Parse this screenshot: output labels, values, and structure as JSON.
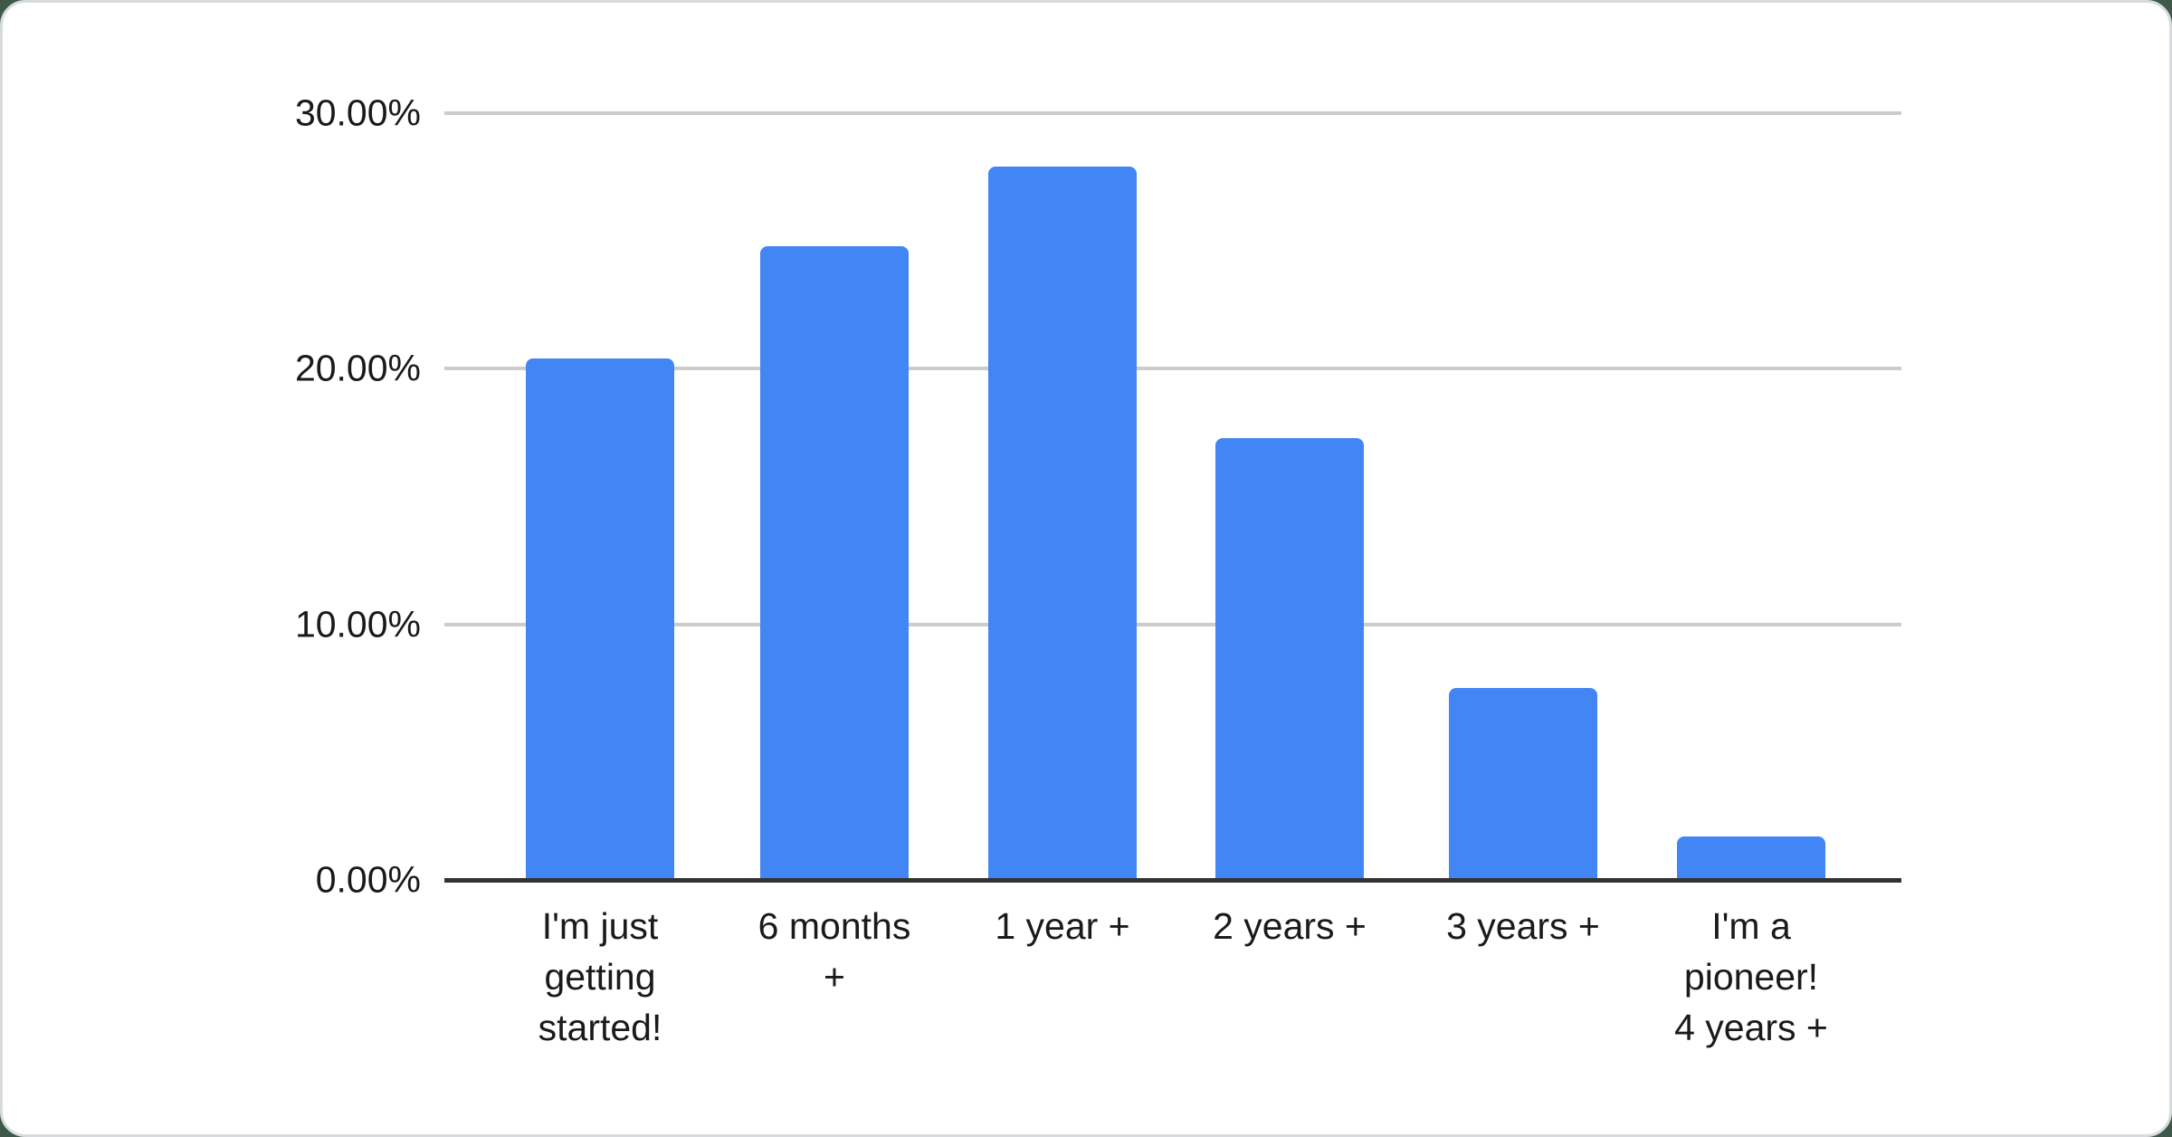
{
  "page": {
    "background_color": "#3e5849",
    "card_background_color": "#ffffff",
    "card_border_color": "#d7dbde"
  },
  "chart_data": {
    "type": "bar",
    "title": "",
    "xlabel": "",
    "ylabel": "",
    "categories": [
      "I'm just getting started!",
      "6 months +",
      "1 year +",
      "2 years +",
      "3 years +",
      "I'm a pioneer! 4 years +"
    ],
    "category_label_lines": [
      [
        "I'm just",
        "getting",
        "started!"
      ],
      [
        "6 months",
        "+"
      ],
      [
        "1 year +"
      ],
      [
        "2 years +"
      ],
      [
        "3 years +"
      ],
      [
        "I'm a",
        "pioneer!",
        "4 years +"
      ]
    ],
    "values": [
      20.4,
      24.8,
      27.9,
      17.3,
      7.5,
      1.7
    ],
    "value_unit": "%",
    "ylim": [
      0,
      30
    ],
    "ytick_values": [
      0,
      10,
      20,
      30
    ],
    "ytick_labels": [
      "0.00%",
      "10.00%",
      "20.00%",
      "30.00%"
    ],
    "grid": true,
    "legend_position": "none",
    "colors": {
      "bar": "#4285f4",
      "gridline": "#cccccc",
      "axis_line": "#333333",
      "text": "#1a1a1a"
    }
  }
}
